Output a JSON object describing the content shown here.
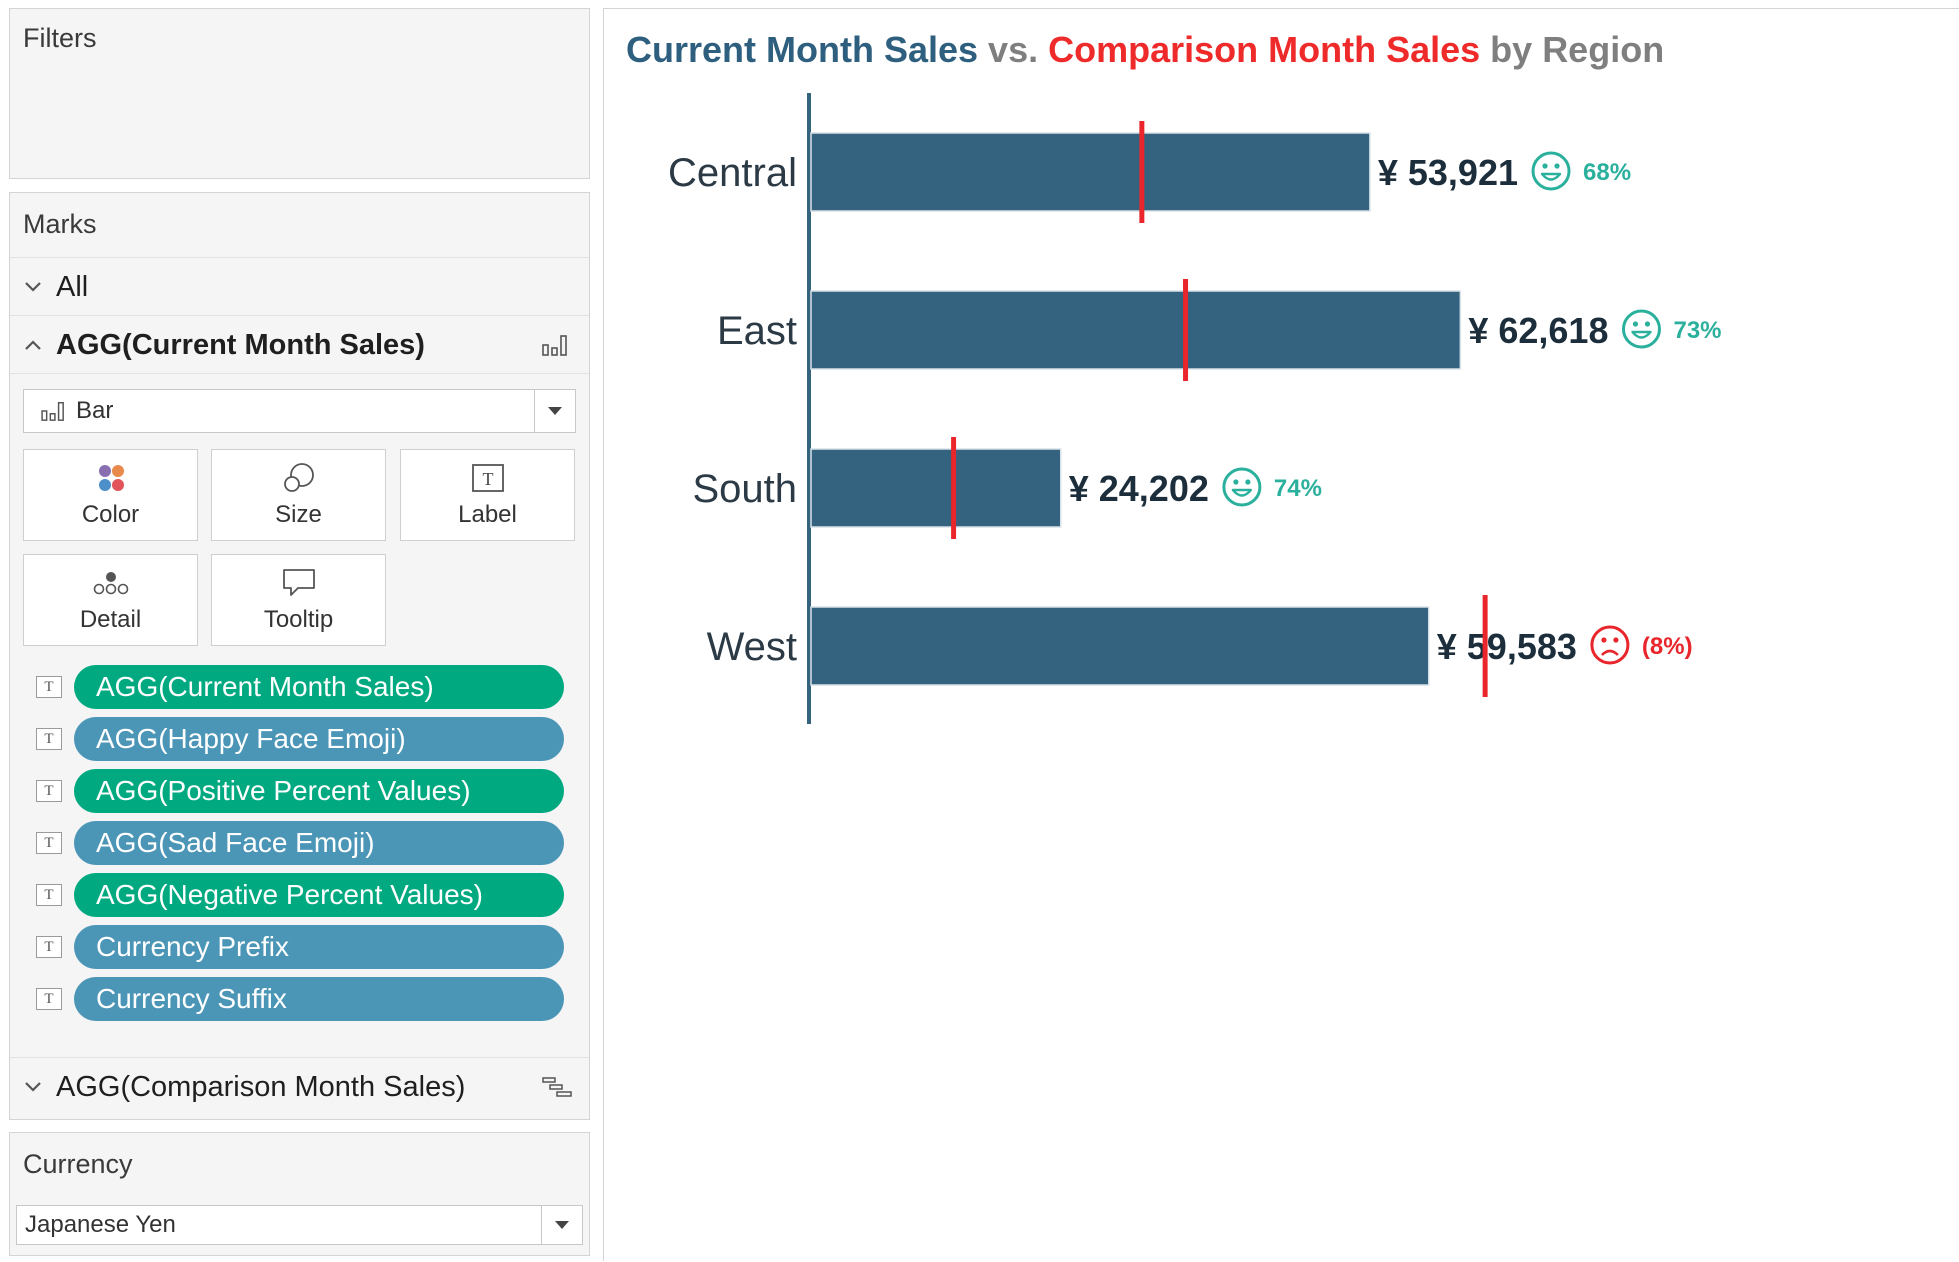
{
  "filters": {
    "title": "Filters"
  },
  "marks": {
    "title": "Marks",
    "all_label": "All",
    "current_card": {
      "label": "AGG(Current Month Sales)",
      "mark_type": "Bar",
      "icon": "bar-chart-icon"
    },
    "buttons": [
      {
        "label": "Color",
        "icon": "color-dots-icon"
      },
      {
        "label": "Size",
        "icon": "size-circles-icon"
      },
      {
        "label": "Label",
        "icon": "label-t-icon"
      },
      {
        "label": "Detail",
        "icon": "detail-dots-icon"
      },
      {
        "label": "Tooltip",
        "icon": "tooltip-bubble-icon"
      }
    ],
    "pills": [
      {
        "label": "AGG(Current Month Sales)",
        "color": "#00a97f"
      },
      {
        "label": "AGG(Happy Face Emoji)",
        "color": "#4b95b6"
      },
      {
        "label": "AGG(Positive Percent Values)",
        "color": "#00a97f"
      },
      {
        "label": "AGG(Sad Face Emoji)",
        "color": "#4b95b6"
      },
      {
        "label": "AGG(Negative Percent Values)",
        "color": "#00a97f"
      },
      {
        "label": "Currency Prefix",
        "color": "#4b95b6"
      },
      {
        "label": "Currency Suffix",
        "color": "#4b95b6"
      }
    ],
    "comparison_card": {
      "label": "AGG(Comparison Month Sales)",
      "icon": "gantt-icon"
    }
  },
  "currency": {
    "title": "Currency",
    "value": "Japanese Yen"
  },
  "chart": {
    "title_parts": [
      {
        "text": "Current Month Sales",
        "color": "#2e5f7e"
      },
      {
        "text": " vs. ",
        "color": "#7f7f7f"
      },
      {
        "text": "Comparison Month Sales",
        "color": "#ee2a2a"
      },
      {
        "text": " by Region",
        "color": "#7f7f7f"
      }
    ],
    "bar_color": "#34637f",
    "marker_color": "#e8262b",
    "positive_color": "#2ab09c",
    "negative_color": "#e8262b"
  },
  "chart_data": {
    "type": "bar",
    "orientation": "horizontal",
    "categories": [
      "Central",
      "East",
      "South",
      "West"
    ],
    "series": [
      {
        "name": "Current Month Sales",
        "values": [
          53921,
          62618,
          24202,
          59583
        ]
      },
      {
        "name": "Comparison Month Sales",
        "values": [
          32000,
          36200,
          13900,
          65000
        ]
      }
    ],
    "value_labels": [
      "¥ 53,921",
      "¥ 62,618",
      "¥ 24,202",
      "¥ 59,583"
    ],
    "percent_labels": [
      "68%",
      "73%",
      "74%",
      "(8%)"
    ],
    "sentiment": [
      "happy",
      "happy",
      "happy",
      "sad"
    ],
    "xlim": [
      0,
      112000
    ]
  }
}
